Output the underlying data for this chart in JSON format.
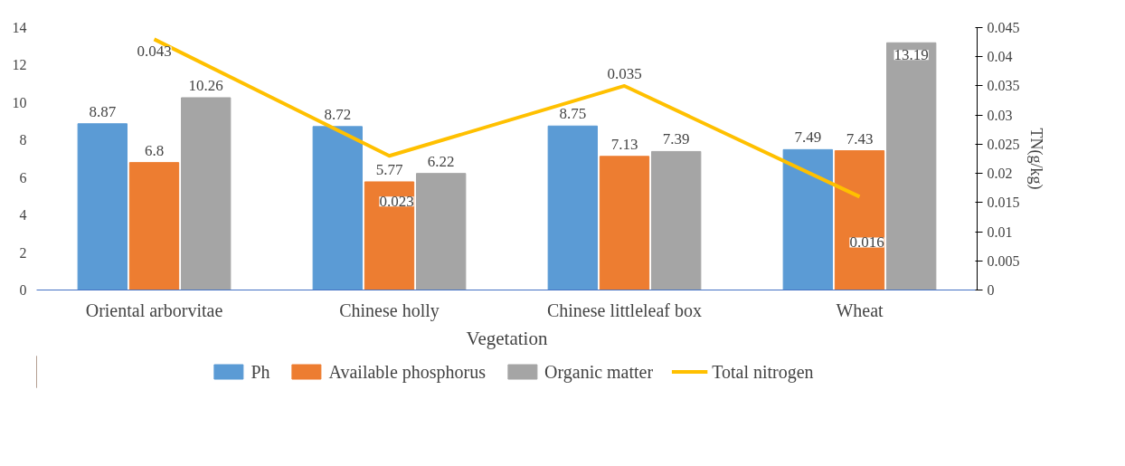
{
  "chart_data": {
    "type": "bar",
    "xlabel": "Vegetation",
    "y2label": "TN(g/kg)",
    "categories": [
      "Oriental arborvitae",
      "Chinese holly",
      "Chinese littleleaf box",
      "Wheat"
    ],
    "series": [
      {
        "name": "Ph",
        "color": "#5b9bd5",
        "values": [
          8.87,
          8.72,
          8.75,
          7.49
        ]
      },
      {
        "name": "Available phosphorus",
        "color": "#ed7d31",
        "values": [
          6.8,
          5.77,
          7.13,
          7.43
        ]
      },
      {
        "name": "Organic matter",
        "color": "#a5a5a5",
        "values": [
          10.26,
          6.22,
          7.39,
          13.19
        ]
      },
      {
        "name": "Total nitrogen",
        "color": "#ffc000",
        "type": "line",
        "axis": "y2",
        "values": [
          0.043,
          0.023,
          0.035,
          0.016
        ]
      }
    ],
    "ylim": [
      0,
      14
    ],
    "yticks": [
      0,
      2,
      4,
      6,
      8,
      10,
      12,
      14
    ],
    "y2lim": [
      0,
      0.045
    ],
    "y2ticks": [
      0,
      0.005,
      0.01,
      0.015,
      0.02,
      0.025,
      0.03,
      0.035,
      0.04,
      0.045
    ],
    "data_labels": true,
    "legend": "bottom",
    "grid": false
  }
}
